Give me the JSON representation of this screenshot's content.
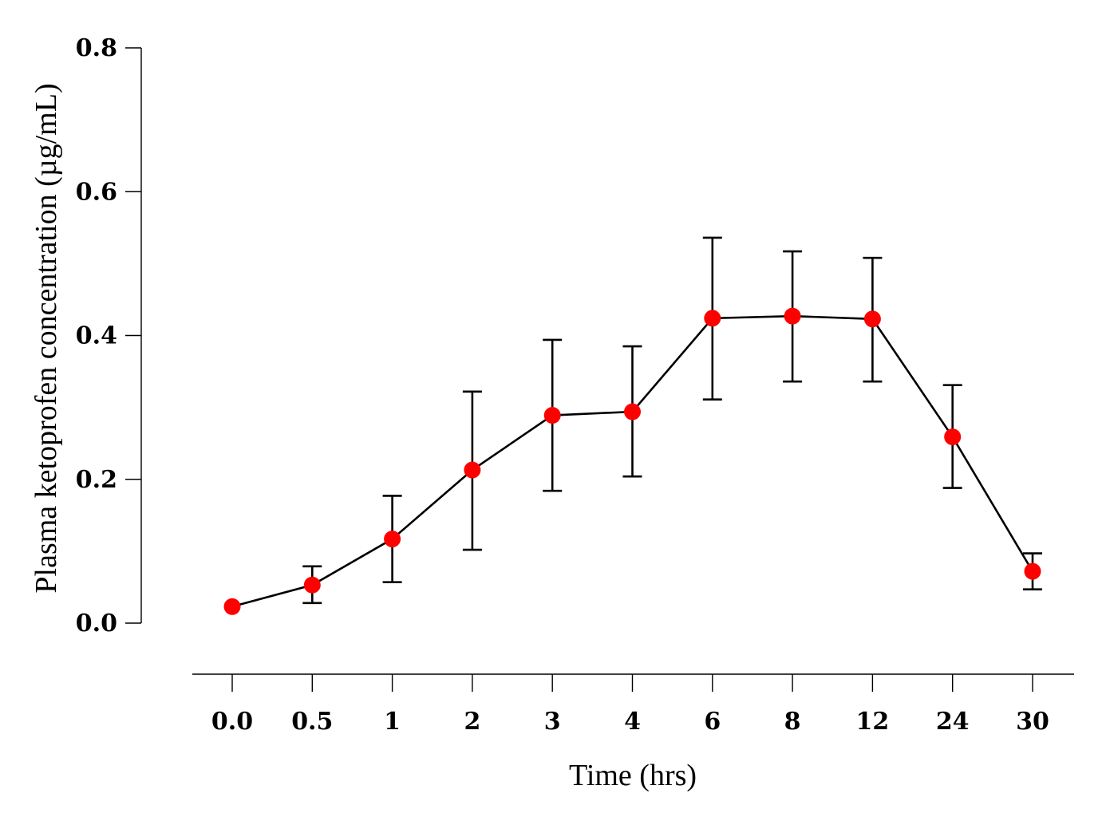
{
  "chart_data": {
    "type": "line",
    "title": "",
    "xlabel": "Time (hrs)",
    "ylabel": "Plasma ketoprofen concentration (µg/mL)",
    "categories": [
      "0.0",
      "0.5",
      "1",
      "2",
      "3",
      "4",
      "6",
      "8",
      "12",
      "24",
      "30"
    ],
    "ylim": [
      0,
      0.8
    ],
    "yticks": [
      "0.0",
      "0.2",
      "0.4",
      "0.6",
      "0.8"
    ],
    "ytick_values": [
      0,
      0.2,
      0.4,
      0.6,
      0.8
    ],
    "series": [
      {
        "name": "Plasma ketoprofen",
        "color": "#ff0000",
        "line_color": "#000000",
        "values": [
          0.023,
          0.053,
          0.117,
          0.213,
          0.289,
          0.294,
          0.424,
          0.427,
          0.423,
          0.259,
          0.072
        ],
        "error_upper": [
          null,
          0.079,
          0.177,
          0.322,
          0.394,
          0.385,
          0.536,
          0.517,
          0.508,
          0.331,
          0.097
        ],
        "error_lower": [
          null,
          0.028,
          0.057,
          0.102,
          0.184,
          0.204,
          0.311,
          0.336,
          0.336,
          0.188,
          0.047
        ]
      }
    ],
    "grid": false,
    "legend": "none"
  }
}
